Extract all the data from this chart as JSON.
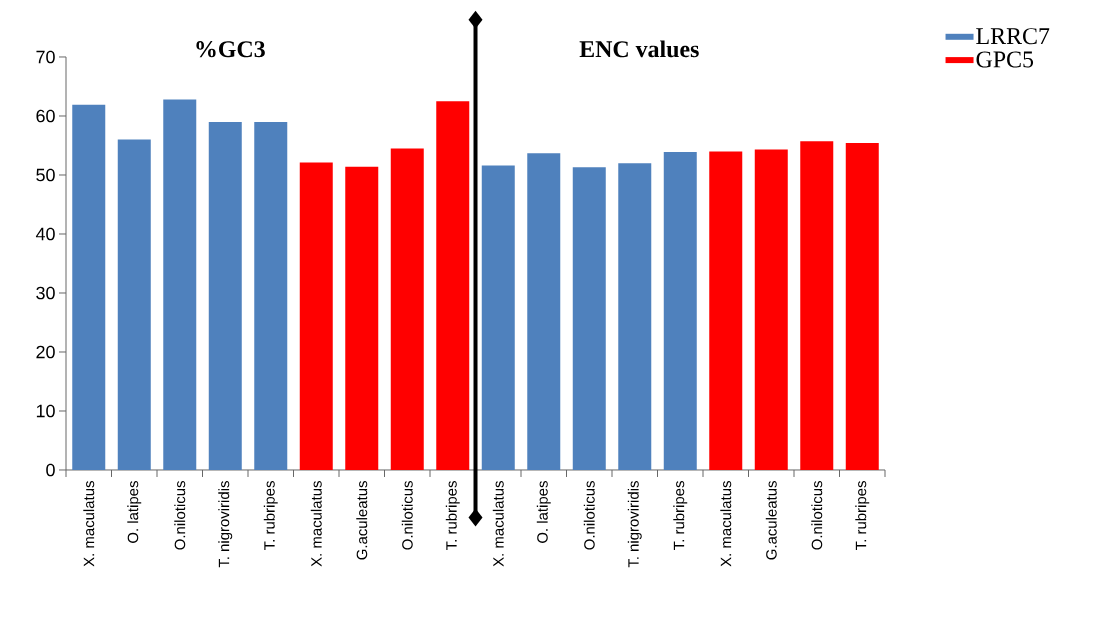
{
  "chart_data": {
    "type": "bar",
    "categories": [
      "X. maculatus",
      "O. latipes",
      "O.niloticus",
      "T. nigroviridis",
      "T. rubripes",
      "X. maculatus",
      "G.aculeatus",
      "O.niloticus",
      "T. rubripes",
      "X. maculatus",
      "O. latipes",
      "O.niloticus",
      "T. nigroviridis",
      "T. rubripes",
      "X. maculatus",
      "G.aculeatus",
      "O.niloticus",
      "T. rubripes"
    ],
    "series": [
      {
        "name": "LRRC7",
        "color": "#4f81bd",
        "values": [
          61.9,
          56.0,
          62.8,
          59.0,
          59.0,
          null,
          null,
          null,
          null,
          51.6,
          53.7,
          51.3,
          52.0,
          53.9,
          null,
          null,
          null,
          null
        ]
      },
      {
        "name": "GPC5",
        "color": "#ff0000",
        "values": [
          null,
          null,
          null,
          null,
          null,
          52.1,
          51.4,
          54.5,
          62.5,
          null,
          null,
          null,
          null,
          null,
          54.0,
          54.3,
          55.7,
          55.4
        ]
      }
    ],
    "ylim": [
      0,
      70
    ],
    "yticks": [
      0,
      10,
      20,
      30,
      40,
      50,
      60,
      70
    ],
    "annotations": [
      "%GC3",
      "ENC values"
    ],
    "legend": "top right",
    "grid": false
  }
}
